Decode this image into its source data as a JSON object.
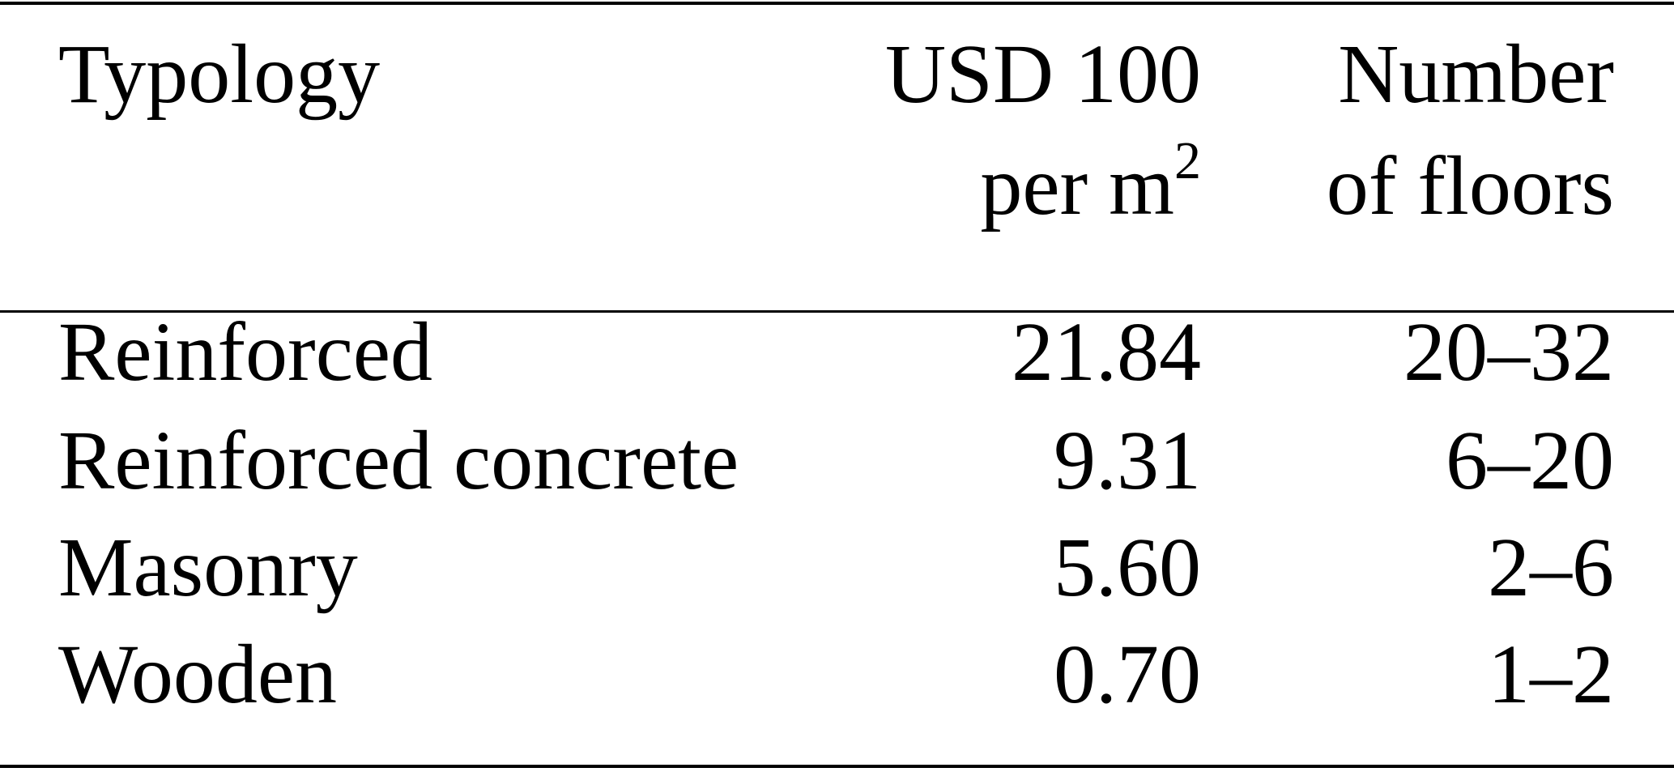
{
  "table": {
    "headers": [
      {
        "line1": "Typology",
        "line2": ""
      },
      {
        "line1": "USD 100",
        "line2": "per m",
        "line2_sup": "2"
      },
      {
        "line1": "Number",
        "line2": "of floors"
      }
    ],
    "rows": [
      {
        "typology": "Reinforced",
        "cost": "21.84",
        "floors": "20–32"
      },
      {
        "typology": "Reinforced concrete",
        "cost": "9.31",
        "floors": "6–20"
      },
      {
        "typology": "Masonry",
        "cost": "5.60",
        "floors": "2–6"
      },
      {
        "typology": "Wooden",
        "cost": "0.70",
        "floors": "1–2"
      }
    ]
  }
}
